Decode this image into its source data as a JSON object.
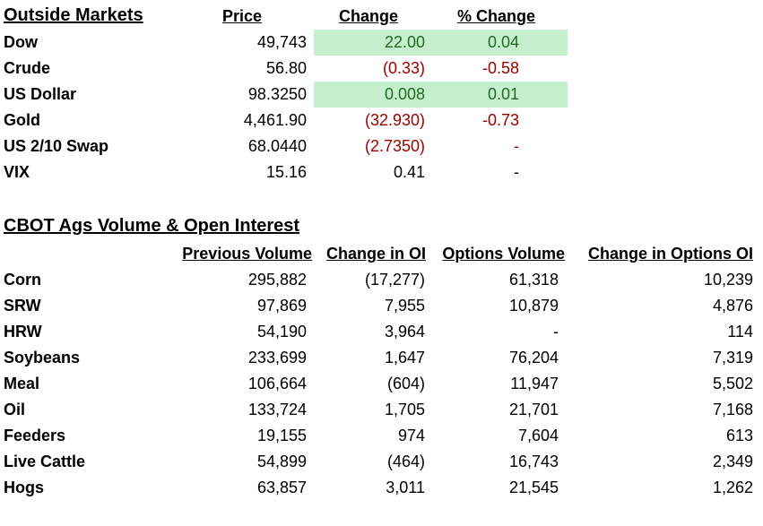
{
  "outside_markets": {
    "title": "Outside Markets",
    "headers": {
      "price": "Price",
      "change": "Change",
      "pct_change": "% Change"
    },
    "rows": [
      {
        "label": "Dow",
        "price": "49,743",
        "change": "22.00",
        "pct": "0.04",
        "direction": "up",
        "highlight": true
      },
      {
        "label": "Crude",
        "price": "56.80",
        "change": "(0.33)",
        "pct": "-0.58",
        "direction": "down",
        "highlight": false
      },
      {
        "label": "US Dollar",
        "price": "98.3250",
        "change": "0.008",
        "pct": "0.01",
        "direction": "up",
        "highlight": true
      },
      {
        "label": "Gold",
        "price": "4,461.90",
        "change": "(32.930)",
        "pct": "-0.73",
        "direction": "down",
        "highlight": false
      },
      {
        "label": "US 2/10 Swap",
        "price": "68.0440",
        "change": "(2.7350)",
        "pct": "-",
        "direction": "down",
        "highlight": false
      },
      {
        "label": "VIX",
        "price": "15.16",
        "change": "0.41",
        "pct": "-",
        "direction": "neutral",
        "highlight": false
      }
    ]
  },
  "cbot": {
    "title": "CBOT Ags Volume & Open Interest",
    "headers": {
      "prev_volume": "Previous Volume",
      "change_oi": "Change in OI",
      "options_volume": "Options Volume",
      "change_options_oi": "Change in Options OI"
    },
    "rows": [
      {
        "label": "Corn",
        "prev_volume": "295,882",
        "change_oi": "(17,277)",
        "options_volume": "61,318",
        "change_options_oi": "10,239"
      },
      {
        "label": "SRW",
        "prev_volume": "97,869",
        "change_oi": "7,955",
        "options_volume": "10,879",
        "change_options_oi": "4,876"
      },
      {
        "label": "HRW",
        "prev_volume": "54,190",
        "change_oi": "3,964",
        "options_volume": "-",
        "change_options_oi": "114"
      },
      {
        "label": "Soybeans",
        "prev_volume": "233,699",
        "change_oi": "1,647",
        "options_volume": "76,204",
        "change_options_oi": "7,319"
      },
      {
        "label": "Meal",
        "prev_volume": "106,664",
        "change_oi": "(604)",
        "options_volume": "11,947",
        "change_options_oi": "5,502"
      },
      {
        "label": "Oil",
        "prev_volume": "133,724",
        "change_oi": "1,705",
        "options_volume": "21,701",
        "change_options_oi": "7,168"
      },
      {
        "label": "Feeders",
        "prev_volume": "19,155",
        "change_oi": "974",
        "options_volume": "7,604",
        "change_options_oi": "613"
      },
      {
        "label": "Live Cattle",
        "prev_volume": "54,899",
        "change_oi": "(464)",
        "options_volume": "16,743",
        "change_options_oi": "2,349"
      },
      {
        "label": "Hogs",
        "prev_volume": "63,857",
        "change_oi": "3,011",
        "options_volume": "21,545",
        "change_options_oi": "1,262"
      }
    ]
  },
  "colors": {
    "highlight_fill": "#c6efce",
    "positive_text": "#1e6b1e",
    "negative_text": "#a00000"
  }
}
